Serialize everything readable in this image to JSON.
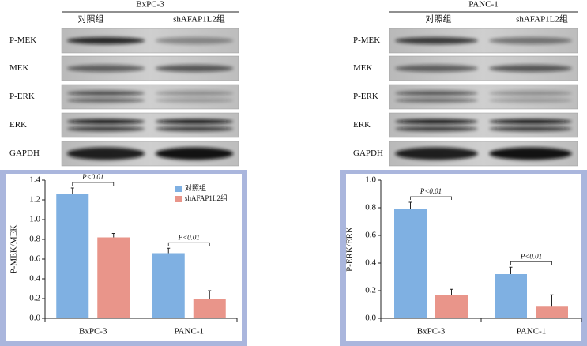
{
  "blots": [
    {
      "title": "BxPC-3",
      "groups": [
        "对照组",
        "shAFAP1L2组"
      ],
      "rows": [
        "P-MEK",
        "MEK",
        "P-ERK",
        "ERK",
        "GAPDH"
      ]
    },
    {
      "title": "PANC-1",
      "groups": [
        "对照组",
        "shAFAP1L2组"
      ],
      "rows": [
        "P-MEK",
        "MEK",
        "P-ERK",
        "ERK",
        "GAPDH"
      ]
    }
  ],
  "chart_data": [
    {
      "type": "bar",
      "ylabel": "P-MEK/MEK",
      "categories": [
        "BxPC-3",
        "PANC-1"
      ],
      "series": [
        {
          "name": "对照组",
          "color": "#7fb0e2",
          "values": [
            1.26,
            0.66
          ],
          "errors": [
            0.06,
            0.05
          ]
        },
        {
          "name": "shAFAP1L2组",
          "color": "#e9958a",
          "values": [
            0.82,
            0.2
          ],
          "errors": [
            0.04,
            0.08
          ]
        }
      ],
      "annotations": [
        "P<0.01",
        "P<0.01"
      ],
      "ylim": [
        0,
        1.4
      ],
      "yticks": [
        {
          "value": 0,
          "label": "0.0"
        },
        0.2,
        0.4,
        0.6,
        0.8,
        {
          "value": 1,
          "label": "1.0"
        },
        1.2,
        1.4
      ]
    },
    {
      "type": "bar",
      "ylabel": "P-ERK/ERK",
      "categories": [
        "BxPC-3",
        "PANC-1"
      ],
      "series": [
        {
          "name": "对照组",
          "color": "#7fb0e2",
          "values": [
            0.79,
            0.32
          ],
          "errors": [
            0.05,
            0.05
          ]
        },
        {
          "name": "shAFAP1L2组",
          "color": "#e9958a",
          "values": [
            0.17,
            0.09
          ],
          "errors": [
            0.04,
            0.08
          ]
        }
      ],
      "annotations": [
        "P<0.01",
        "P<0.01"
      ],
      "ylim": [
        0,
        1
      ],
      "yticks": [
        {
          "value": 0,
          "label": "0.0"
        },
        0.2,
        0.4,
        0.6,
        0.8,
        {
          "value": 1,
          "label": "1.0"
        }
      ]
    }
  ]
}
